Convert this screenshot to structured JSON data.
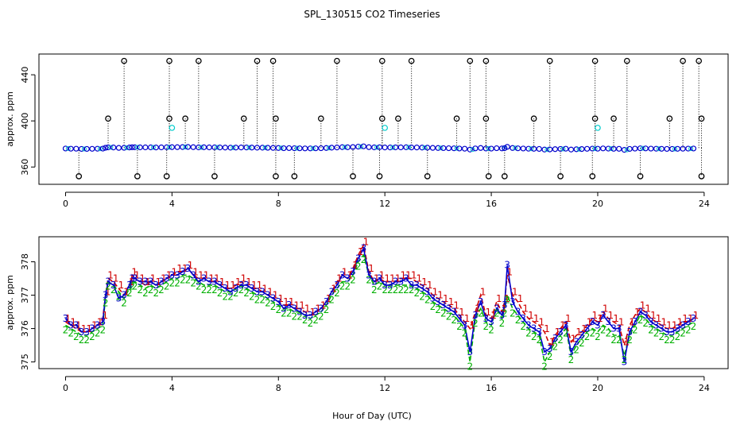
{
  "page": {
    "title": "SPL_130515  CO2 Timeseries",
    "xlabel": "Hour of Day (UTC)"
  },
  "colors": {
    "outlier": "#000000",
    "series1": "#d00000",
    "series2": "#00b000",
    "series3": "#0000cc",
    "cyan": "#00cccc",
    "frame": "#000000"
  },
  "chart_data": [
    {
      "type": "scatter",
      "name": "top-panel",
      "title": "SPL_130515  CO2 Timeseries",
      "xlabel": "",
      "ylabel": "approx. ppm",
      "xlim": [
        -1.0,
        24.9
      ],
      "ylim": [
        345,
        458
      ],
      "xticks": [
        0,
        4,
        8,
        12,
        16,
        20,
        24
      ],
      "yticks": [
        360,
        400,
        440
      ],
      "baseline": 376.5,
      "high_outliers_x": [
        2.2,
        3.9,
        5.0,
        7.2,
        7.8,
        10.2,
        11.9,
        13.0,
        15.2,
        15.8,
        18.2,
        19.9,
        21.1,
        23.2,
        23.8
      ],
      "high_outliers_y": 452,
      "mid_outliers_x": [
        1.6,
        3.9,
        4.5,
        6.7,
        7.9,
        9.6,
        11.9,
        12.5,
        14.7,
        15.8,
        17.6,
        19.9,
        20.6,
        22.7,
        23.9
      ],
      "mid_outliers_y": 402,
      "low_outliers_x": [
        0.5,
        2.7,
        3.8,
        5.6,
        7.9,
        8.6,
        10.8,
        11.8,
        13.6,
        15.9,
        16.5,
        18.6,
        19.8,
        21.6,
        23.9
      ],
      "low_outliers_y": 352,
      "cyan_points": [
        {
          "x": 4.0,
          "y": 394
        },
        {
          "x": 12.0,
          "y": 394
        },
        {
          "x": 20.0,
          "y": 394
        }
      ]
    },
    {
      "type": "line",
      "name": "bottom-panel",
      "title": "",
      "xlabel": "Hour of Day (UTC)",
      "ylabel": "approx. ppm",
      "xlim": [
        -1.0,
        24.9
      ],
      "ylim": [
        374.8,
        378.75
      ],
      "xticks": [
        0,
        4,
        8,
        12,
        16,
        20,
        24
      ],
      "yticks": [
        375,
        376,
        377,
        378
      ],
      "x": [
        0.0,
        0.2,
        0.4,
        0.6,
        0.8,
        1.0,
        1.2,
        1.4,
        1.5,
        1.6,
        1.8,
        2.0,
        2.2,
        2.4,
        2.5,
        2.6,
        2.8,
        3.0,
        3.2,
        3.4,
        3.6,
        3.8,
        4.0,
        4.2,
        4.4,
        4.6,
        4.8,
        5.0,
        5.2,
        5.4,
        5.6,
        5.8,
        6.0,
        6.2,
        6.4,
        6.6,
        6.8,
        7.0,
        7.2,
        7.4,
        7.6,
        7.8,
        8.0,
        8.2,
        8.4,
        8.6,
        8.8,
        9.0,
        9.2,
        9.4,
        9.6,
        9.8,
        10.0,
        10.2,
        10.4,
        10.6,
        10.8,
        11.0,
        11.2,
        11.4,
        11.6,
        11.8,
        12.0,
        12.2,
        12.4,
        12.6,
        12.8,
        13.0,
        13.2,
        13.4,
        13.6,
        13.8,
        14.0,
        14.2,
        14.4,
        14.6,
        14.8,
        15.0,
        15.2,
        15.4,
        15.6,
        15.8,
        16.0,
        16.2,
        16.4,
        16.5,
        16.6,
        16.8,
        17.0,
        17.2,
        17.4,
        17.6,
        17.8,
        18.0,
        18.2,
        18.4,
        18.6,
        18.8,
        19.0,
        19.2,
        19.4,
        19.6,
        19.8,
        20.0,
        20.2,
        20.4,
        20.6,
        20.8,
        21.0,
        21.2,
        21.4,
        21.6,
        21.8,
        22.0,
        22.2,
        22.4,
        22.6,
        22.8,
        23.0,
        23.2,
        23.4,
        23.6
      ],
      "series": [
        {
          "name": "1",
          "values": [
            376.2,
            376.1,
            376.0,
            375.9,
            375.9,
            376.0,
            376.1,
            376.3,
            377.0,
            377.5,
            377.4,
            377.2,
            377.0,
            377.3,
            377.6,
            377.5,
            377.4,
            377.3,
            377.4,
            377.3,
            377.4,
            377.5,
            377.6,
            377.7,
            377.7,
            377.8,
            377.6,
            377.5,
            377.5,
            377.4,
            377.4,
            377.3,
            377.2,
            377.2,
            377.3,
            377.4,
            377.3,
            377.2,
            377.2,
            377.1,
            377.0,
            376.9,
            376.8,
            376.7,
            376.7,
            376.6,
            376.6,
            376.5,
            376.4,
            376.5,
            376.6,
            376.8,
            377.1,
            377.4,
            377.6,
            377.5,
            377.8,
            378.2,
            378.5,
            377.7,
            377.4,
            377.5,
            377.4,
            377.4,
            377.4,
            377.5,
            377.5,
            377.5,
            377.4,
            377.3,
            377.2,
            377.0,
            376.9,
            376.8,
            376.7,
            376.6,
            376.4,
            376.2,
            376.0,
            376.5,
            377.0,
            376.4,
            376.3,
            376.8,
            376.5,
            376.8,
            377.6,
            377.0,
            376.8,
            376.5,
            376.3,
            376.2,
            376.1,
            375.9,
            375.5,
            375.8,
            376.0,
            376.2,
            375.6,
            375.8,
            375.9,
            376.1,
            376.3,
            376.2,
            376.5,
            376.3,
            376.2,
            376.1,
            375.5,
            376.1,
            376.4,
            376.6,
            376.5,
            376.3,
            376.2,
            376.1,
            376.0,
            376.0,
            376.1,
            376.2,
            376.2,
            376.3
          ]
        },
        {
          "name": "2",
          "values": [
            376.1,
            376.0,
            375.9,
            375.8,
            375.8,
            375.9,
            376.0,
            376.1,
            376.9,
            377.4,
            377.3,
            377.1,
            376.9,
            377.2,
            377.4,
            377.4,
            377.3,
            377.2,
            377.3,
            377.2,
            377.3,
            377.4,
            377.5,
            377.5,
            377.6,
            377.6,
            377.5,
            377.4,
            377.3,
            377.3,
            377.3,
            377.2,
            377.1,
            377.1,
            377.2,
            377.3,
            377.2,
            377.1,
            377.0,
            377.0,
            376.9,
            376.8,
            376.7,
            376.6,
            376.6,
            376.5,
            376.5,
            376.4,
            376.3,
            376.4,
            376.5,
            376.7,
            377.0,
            377.2,
            377.4,
            377.4,
            377.6,
            378.0,
            378.2,
            377.6,
            377.3,
            377.4,
            377.3,
            377.3,
            377.3,
            377.3,
            377.3,
            377.3,
            377.2,
            377.1,
            377.0,
            376.8,
            376.7,
            376.6,
            376.5,
            376.4,
            376.2,
            376.0,
            375.0,
            376.3,
            376.6,
            376.2,
            376.1,
            376.6,
            376.3,
            376.6,
            377.0,
            376.6,
            376.4,
            376.2,
            376.0,
            375.9,
            375.8,
            375.0,
            375.3,
            375.6,
            375.8,
            376.0,
            375.2,
            375.5,
            375.7,
            375.9,
            376.0,
            375.9,
            376.1,
            376.0,
            375.8,
            375.8,
            375.2,
            375.8,
            376.1,
            376.4,
            376.3,
            376.1,
            376.0,
            375.9,
            375.8,
            375.8,
            375.9,
            376.0,
            376.1,
            376.2
          ]
        },
        {
          "name": "3",
          "values": [
            376.3,
            376.1,
            376.1,
            375.9,
            375.9,
            376.0,
            376.1,
            376.2,
            377.0,
            377.4,
            377.3,
            376.9,
            377.0,
            377.3,
            377.5,
            377.5,
            377.4,
            377.4,
            377.4,
            377.3,
            377.4,
            377.5,
            377.6,
            377.6,
            377.7,
            377.8,
            377.6,
            377.4,
            377.5,
            377.4,
            377.4,
            377.3,
            377.2,
            377.1,
            377.2,
            377.3,
            377.3,
            377.2,
            377.1,
            377.1,
            377.0,
            376.9,
            376.8,
            376.6,
            376.7,
            376.6,
            376.5,
            376.4,
            376.4,
            376.5,
            376.6,
            376.8,
            377.1,
            377.3,
            377.6,
            377.5,
            377.7,
            378.1,
            378.4,
            377.6,
            377.4,
            377.5,
            377.3,
            377.3,
            377.4,
            377.4,
            377.5,
            377.3,
            377.3,
            377.2,
            377.1,
            376.9,
            376.8,
            376.7,
            376.6,
            376.5,
            376.3,
            376.1,
            375.3,
            376.4,
            376.8,
            376.3,
            376.2,
            376.6,
            376.4,
            376.7,
            377.9,
            376.8,
            376.5,
            376.3,
            376.1,
            376.0,
            375.9,
            375.3,
            375.4,
            375.7,
            375.9,
            376.1,
            375.3,
            375.6,
            375.8,
            376.0,
            376.2,
            376.1,
            376.4,
            376.2,
            376.0,
            376.0,
            375.0,
            375.9,
            376.2,
            376.5,
            376.4,
            376.2,
            376.1,
            376.0,
            375.9,
            375.9,
            376.0,
            376.1,
            376.2,
            376.3
          ]
        }
      ]
    }
  ]
}
